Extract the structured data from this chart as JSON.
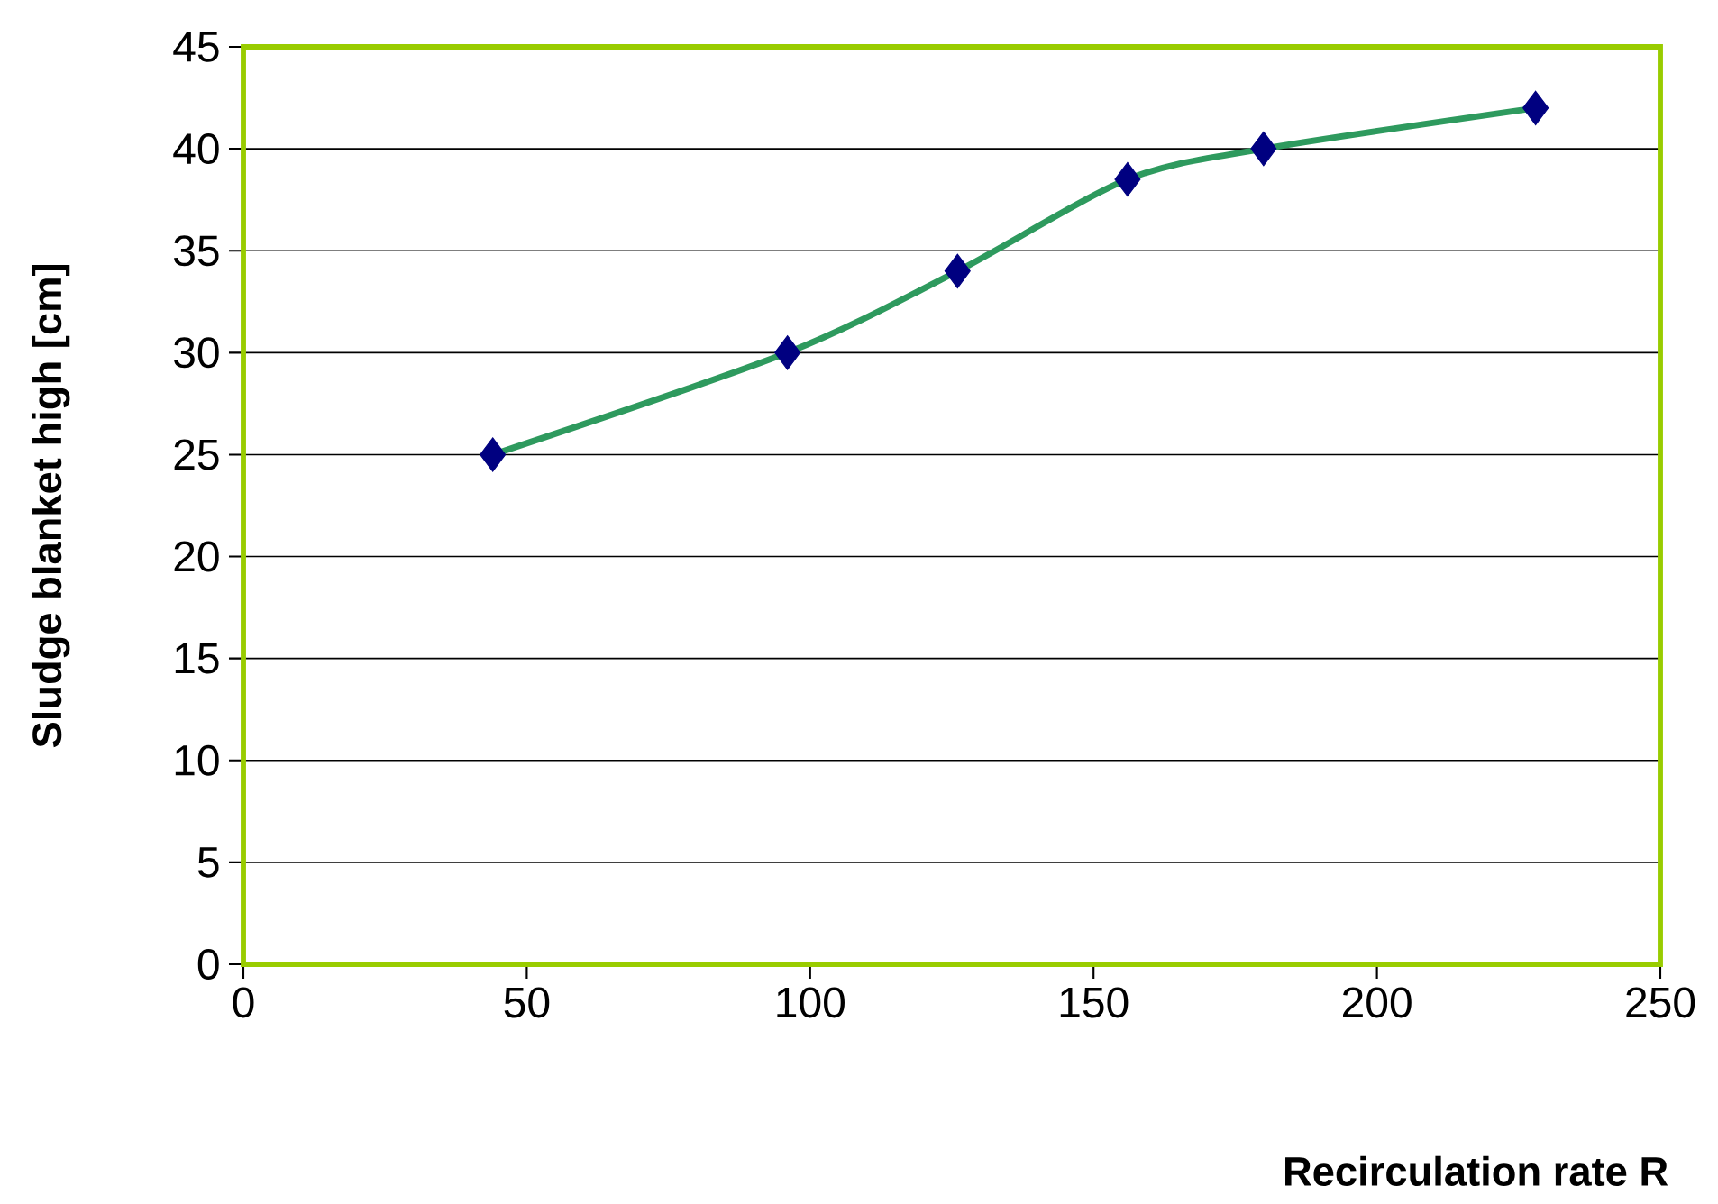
{
  "chart_data": {
    "type": "line",
    "xlabel": "Recirculation rate R",
    "ylabel": "Sludge blanket high [cm]",
    "x": [
      44,
      96,
      126,
      156,
      180,
      228
    ],
    "series": [
      {
        "color": "#2e9a5e",
        "colors": [
          "#000080",
          "#000080",
          "#000080",
          "#000080",
          "#000080",
          "#000080"
        ],
        "values": [
          25,
          30,
          34,
          38.5,
          40,
          42
        ]
      }
    ],
    "xlim": [
      0,
      250
    ],
    "xticks": [
      0,
      50,
      100,
      150,
      200,
      250
    ],
    "ylim": [
      0,
      45
    ],
    "yticks": [
      0,
      5,
      10,
      15,
      20,
      25,
      30,
      35,
      40,
      45
    ],
    "grid": "y",
    "marker": "diamond",
    "line_style": "solid"
  }
}
